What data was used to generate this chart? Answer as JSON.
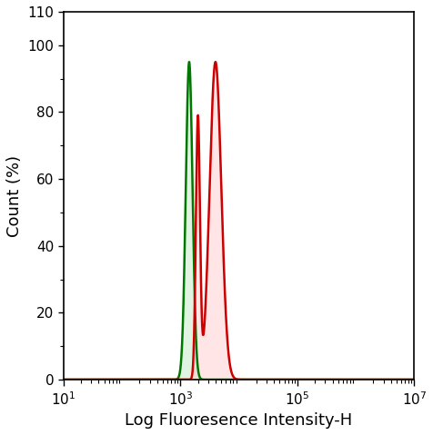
{
  "xlabel": "Log Fluoresence Intensity-H",
  "ylabel": "Count (%)",
  "xlim_log": [
    1,
    7
  ],
  "ylim": [
    0,
    110
  ],
  "yticks": [
    0,
    20,
    40,
    60,
    80,
    100,
    110
  ],
  "xtick_powers": [
    1,
    3,
    5,
    7
  ],
  "green_color": "#007700",
  "green_fill": "#aaddaa",
  "green_fill_alpha": 0.35,
  "red_color": "#cc0000",
  "red_fill": "#ffcccc",
  "red_fill_alpha": 0.5,
  "green_peak_log": 3.15,
  "green_sigma_log": 0.058,
  "green_peak_height": 95,
  "red_peak1_log": 3.3,
  "red_peak1_height": 78,
  "red_sigma1_log": 0.035,
  "red_valley_log": 3.42,
  "red_peak2_log": 3.6,
  "red_peak2_height": 95,
  "red_sigma2_log": 0.1,
  "background_color": "#ffffff",
  "font_size_axis_label": 13,
  "font_size_ticks": 11
}
